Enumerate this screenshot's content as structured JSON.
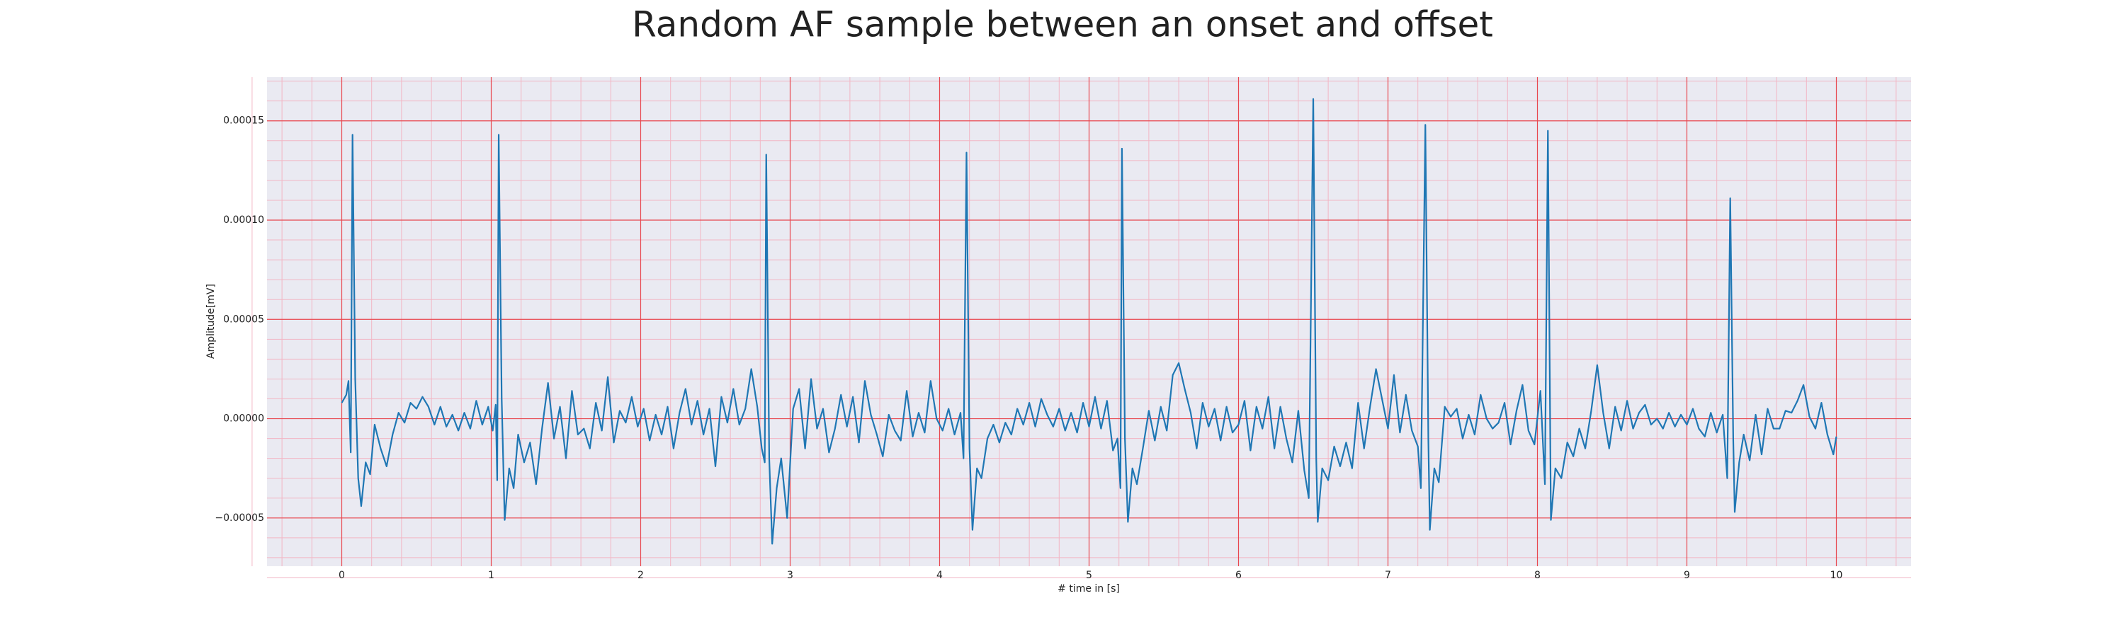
{
  "chart_data": {
    "type": "line",
    "title": "Random AF sample between an onset and offset",
    "xlabel": "# time in [s]",
    "ylabel": "Amplitude[mV]",
    "color": "#1f77b4",
    "grid": true,
    "xlim": [
      -0.5,
      10.5
    ],
    "xticks": [
      0,
      1,
      2,
      3,
      4,
      5,
      6,
      7,
      8,
      9,
      10
    ],
    "ylim": [
      -7.43e-05,
      0.000172
    ],
    "yticks": [
      {
        "value": -5e-05,
        "label": "−0.00005"
      },
      {
        "value": 0,
        "label": "0.00000"
      },
      {
        "value": 5e-05,
        "label": "0.00005"
      },
      {
        "value": 0.0001,
        "label": "0.00010"
      },
      {
        "value": 0.00015,
        "label": "0.00015"
      }
    ],
    "x": [
      0,
      0.03,
      0.045,
      0.06,
      0.072,
      0.09,
      0.11,
      0.13,
      0.16,
      0.19,
      0.22,
      0.26,
      0.3,
      0.34,
      0.38,
      0.42,
      0.46,
      0.5,
      0.54,
      0.58,
      0.62,
      0.66,
      0.7,
      0.74,
      0.78,
      0.82,
      0.86,
      0.9,
      0.94,
      0.98,
      1.01,
      1.03,
      1.04,
      1.05,
      1.07,
      1.09,
      1.12,
      1.15,
      1.18,
      1.22,
      1.26,
      1.3,
      1.34,
      1.38,
      1.42,
      1.46,
      1.5,
      1.54,
      1.58,
      1.62,
      1.66,
      1.7,
      1.74,
      1.78,
      1.82,
      1.86,
      1.9,
      1.94,
      1.98,
      2.02,
      2.06,
      2.1,
      2.14,
      2.18,
      2.22,
      2.26,
      2.3,
      2.34,
      2.38,
      2.42,
      2.46,
      2.5,
      2.54,
      2.58,
      2.62,
      2.66,
      2.7,
      2.74,
      2.78,
      2.81,
      2.83,
      2.84,
      2.86,
      2.88,
      2.91,
      2.94,
      2.98,
      3.02,
      3.06,
      3.1,
      3.14,
      3.18,
      3.22,
      3.26,
      3.3,
      3.34,
      3.38,
      3.42,
      3.46,
      3.5,
      3.54,
      3.58,
      3.62,
      3.66,
      3.7,
      3.74,
      3.78,
      3.82,
      3.86,
      3.9,
      3.94,
      3.98,
      4.02,
      4.06,
      4.1,
      4.14,
      4.16,
      4.18,
      4.2,
      4.22,
      4.25,
      4.28,
      4.32,
      4.36,
      4.4,
      4.44,
      4.48,
      4.52,
      4.56,
      4.6,
      4.64,
      4.68,
      4.72,
      4.76,
      4.8,
      4.84,
      4.88,
      4.92,
      4.96,
      5,
      5.04,
      5.08,
      5.12,
      5.16,
      5.19,
      5.21,
      5.22,
      5.24,
      5.26,
      5.29,
      5.32,
      5.36,
      5.4,
      5.44,
      5.48,
      5.52,
      5.56,
      5.6,
      5.64,
      5.68,
      5.72,
      5.76,
      5.8,
      5.84,
      5.88,
      5.92,
      5.96,
      6,
      6.04,
      6.08,
      6.12,
      6.16,
      6.2,
      6.24,
      6.28,
      6.32,
      6.36,
      6.4,
      6.44,
      6.47,
      6.5,
      6.52,
      6.53,
      6.56,
      6.6,
      6.64,
      6.68,
      6.72,
      6.76,
      6.8,
      6.84,
      6.88,
      6.92,
      6.96,
      7,
      7.04,
      7.08,
      7.12,
      7.16,
      7.2,
      7.22,
      7.25,
      7.27,
      7.28,
      7.31,
      7.34,
      7.38,
      7.42,
      7.46,
      7.5,
      7.54,
      7.58,
      7.62,
      7.66,
      7.7,
      7.74,
      7.78,
      7.82,
      7.86,
      7.9,
      7.94,
      7.98,
      8.02,
      8.05,
      8.07,
      8.09,
      8.12,
      8.16,
      8.2,
      8.24,
      8.28,
      8.32,
      8.36,
      8.4,
      8.44,
      8.48,
      8.52,
      8.56,
      8.6,
      8.64,
      8.68,
      8.72,
      8.76,
      8.8,
      8.84,
      8.88,
      8.92,
      8.96,
      9,
      9.04,
      9.08,
      9.12,
      9.16,
      9.2,
      9.24,
      9.27,
      9.29,
      9.31,
      9.32,
      9.35,
      9.38,
      9.42,
      9.46,
      9.5,
      9.54,
      9.58,
      9.62,
      9.66,
      9.7,
      9.74,
      9.78,
      9.82,
      9.86,
      9.9,
      9.94,
      9.98,
      10
    ],
    "values": [
      8e-06,
      1.2e-05,
      1.9e-05,
      -1.7e-05,
      0.000143,
      2e-05,
      -3e-05,
      -4.4e-05,
      -2.2e-05,
      -2.8e-05,
      -3e-06,
      -1.5e-05,
      -2.4e-05,
      -8e-06,
      3e-06,
      -2e-06,
      8e-06,
      5e-06,
      1.1e-05,
      6e-06,
      -3e-06,
      6e-06,
      -4e-06,
      2e-06,
      -6e-06,
      3e-06,
      -5e-06,
      9e-06,
      -3e-06,
      6e-06,
      -6e-06,
      7e-06,
      -3.1e-05,
      0.000143,
      1e-05,
      -5.1e-05,
      -2.5e-05,
      -3.5e-05,
      -8e-06,
      -2.2e-05,
      -1.2e-05,
      -3.3e-05,
      -5e-06,
      1.8e-05,
      -1e-05,
      6e-06,
      -2e-05,
      1.4e-05,
      -8e-06,
      -5e-06,
      -1.5e-05,
      8e-06,
      -6e-06,
      2.1e-05,
      -1.2e-05,
      4e-06,
      -2e-06,
      1.1e-05,
      -4e-06,
      5e-06,
      -1.1e-05,
      2e-06,
      -8e-06,
      6e-06,
      -1.5e-05,
      3e-06,
      1.5e-05,
      -3e-06,
      9e-06,
      -8e-06,
      5e-06,
      -2.4e-05,
      1.1e-05,
      -2e-06,
      1.5e-05,
      -3e-06,
      5e-06,
      2.5e-05,
      6e-06,
      -1.5e-05,
      -2.2e-05,
      0.000133,
      -2e-05,
      -6.3e-05,
      -3.5e-05,
      -2e-05,
      -5e-05,
      5e-06,
      1.5e-05,
      -1.5e-05,
      2e-05,
      -5e-06,
      5e-06,
      -1.7e-05,
      -5e-06,
      1.2e-05,
      -4e-06,
      1.1e-05,
      -1.2e-05,
      1.9e-05,
      2e-06,
      -8e-06,
      -1.9e-05,
      2e-06,
      -6e-06,
      -1.1e-05,
      1.4e-05,
      -9e-06,
      3e-06,
      -7e-06,
      1.9e-05,
      0,
      -6e-06,
      5e-06,
      -8e-06,
      3e-06,
      -2e-05,
      0.000134,
      -1.5e-05,
      -5.6e-05,
      -2.5e-05,
      -3e-05,
      -1e-05,
      -3e-06,
      -1.2e-05,
      -2e-06,
      -8e-06,
      5e-06,
      -3e-06,
      8e-06,
      -4e-06,
      1e-05,
      2e-06,
      -4e-06,
      5e-06,
      -6e-06,
      3e-06,
      -7e-06,
      8e-06,
      -4e-06,
      1.1e-05,
      -5e-06,
      9e-06,
      -1.6e-05,
      -1e-05,
      -3.5e-05,
      0.000136,
      -1e-05,
      -5.2e-05,
      -2.5e-05,
      -3.3e-05,
      -1.5e-05,
      4e-06,
      -1.1e-05,
      6e-06,
      -6e-06,
      2.2e-05,
      2.8e-05,
      1.5e-05,
      3e-06,
      -1.5e-05,
      8e-06,
      -4e-06,
      5e-06,
      -1.1e-05,
      6e-06,
      -7e-06,
      -3e-06,
      9e-06,
      -1.6e-05,
      6e-06,
      -5e-06,
      1.1e-05,
      -1.5e-05,
      6e-06,
      -1e-05,
      -2.2e-05,
      4e-06,
      -2.6e-05,
      -4e-05,
      0.000161,
      -2e-05,
      -5.2e-05,
      -2.5e-05,
      -3.1e-05,
      -1.4e-05,
      -2.4e-05,
      -1.2e-05,
      -2.5e-05,
      8e-06,
      -1.5e-05,
      6e-06,
      2.5e-05,
      1e-05,
      -5e-06,
      2.2e-05,
      -7e-06,
      1.2e-05,
      -6e-06,
      -1.4e-05,
      -3.5e-05,
      0.000148,
      -1e-05,
      -5.6e-05,
      -2.5e-05,
      -3.2e-05,
      6e-06,
      1e-06,
      5e-06,
      -1e-05,
      2e-06,
      -8e-06,
      1.2e-05,
      0,
      -5e-06,
      -2e-06,
      8e-06,
      -1.3e-05,
      4e-06,
      1.7e-05,
      -6e-06,
      -1.3e-05,
      1.4e-05,
      -3.3e-05,
      0.000145,
      -5.1e-05,
      -2.5e-05,
      -3e-05,
      -1.2e-05,
      -1.9e-05,
      -5e-06,
      -1.5e-05,
      4e-06,
      2.7e-05,
      3e-06,
      -1.5e-05,
      6e-06,
      -6e-06,
      9e-06,
      -5e-06,
      3e-06,
      7e-06,
      -3e-06,
      0,
      -5e-06,
      3e-06,
      -4e-06,
      2e-06,
      -3e-06,
      5e-06,
      -5e-06,
      -9e-06,
      3e-06,
      -7e-06,
      2e-06,
      -3e-05,
      0.000111,
      -1e-05,
      -4.7e-05,
      -2.2e-05,
      -8e-06,
      -2.1e-05,
      2e-06,
      -1.8e-05,
      5e-06,
      -5e-06,
      -5e-06,
      4e-06,
      3e-06,
      9e-06,
      1.7e-05,
      1e-06,
      -5e-06,
      8e-06,
      -8e-06,
      -1.8e-05,
      -9e-06
    ]
  }
}
